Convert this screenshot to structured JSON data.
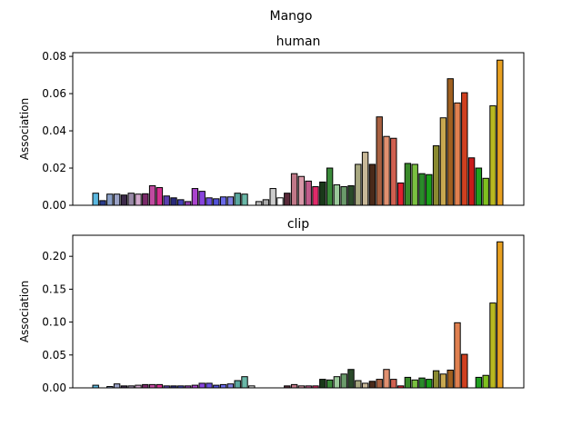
{
  "figure": {
    "title": "Mango"
  },
  "chart_data": [
    {
      "type": "bar",
      "title": "human",
      "xlabel": "",
      "ylabel": "Association",
      "ylim": [
        0,
        0.082
      ],
      "yticks": [
        0.0,
        0.02,
        0.04,
        0.06,
        0.08
      ],
      "ytick_labels": [
        "0.00",
        "0.02",
        "0.04",
        "0.06",
        "0.08"
      ],
      "grid": false,
      "values": [
        0.0065,
        0.0025,
        0.006,
        0.006,
        0.0055,
        0.0065,
        0.006,
        0.0062,
        0.0105,
        0.0095,
        0.005,
        0.004,
        0.003,
        0.002,
        0.009,
        0.0075,
        0.004,
        0.0035,
        0.0045,
        0.0045,
        0.0065,
        0.006,
        0.0,
        0.002,
        0.003,
        0.009,
        0.004,
        0.0065,
        0.017,
        0.0155,
        0.013,
        0.01,
        0.0125,
        0.02,
        0.011,
        0.01,
        0.0105,
        0.022,
        0.0285,
        0.022,
        0.0475,
        0.037,
        0.036,
        0.012,
        0.0225,
        0.022,
        0.017,
        0.0165,
        0.032,
        0.047,
        0.068,
        0.055,
        0.0605,
        0.0255,
        0.02,
        0.0145,
        0.0535,
        0.078
      ],
      "colors": [
        "#5bb8e0",
        "#2a3c8c",
        "#8aa0c8",
        "#9aa2c6",
        "#3c2a4a",
        "#9a8aa8",
        "#d2a8cc",
        "#7a2a6a",
        "#c04aa0",
        "#d43090",
        "#5a40b0",
        "#2a2a7a",
        "#4444b8",
        "#9040b0",
        "#aa44cc",
        "#8844dd",
        "#6a50e0",
        "#5252d8",
        "#6a6ae8",
        "#8080e0",
        "#5aa8a0",
        "#6ab8a8",
        "#dddddd",
        "#bbbbbb",
        "#aaaaaa",
        "#cccccc",
        "#ffffff",
        "#5a2a3a",
        "#c07888",
        "#d898a8",
        "#c05a8a",
        "#e02a6a",
        "#1a3a1a",
        "#3a8a3a",
        "#9ac89a",
        "#6a9a6a",
        "#2a4a2a",
        "#a8a880",
        "#c8b898",
        "#4a2a1a",
        "#a86040",
        "#e09070",
        "#d06050",
        "#e02030",
        "#3a8a2a",
        "#7ac040",
        "#2a8a2a",
        "#1aa01a",
        "#8a8a30",
        "#c8a850",
        "#a06020",
        "#e08050",
        "#d04020",
        "#c81a1a",
        "#20a020",
        "#80c020",
        "#b8b820",
        "#e8a020"
      ]
    },
    {
      "type": "bar",
      "title": "clip",
      "xlabel": "",
      "ylabel": "Association",
      "ylim": [
        0,
        0.232
      ],
      "yticks": [
        0.0,
        0.05,
        0.1,
        0.15,
        0.2
      ],
      "ytick_labels": [
        "0.00",
        "0.05",
        "0.10",
        "0.15",
        "0.20"
      ],
      "grid": false,
      "values": [
        0.004,
        0.0,
        0.002,
        0.006,
        0.003,
        0.003,
        0.004,
        0.005,
        0.005,
        0.005,
        0.003,
        0.003,
        0.003,
        0.003,
        0.004,
        0.007,
        0.007,
        0.004,
        0.005,
        0.006,
        0.011,
        0.017,
        0.003,
        0.0,
        0.0,
        0.0,
        0.0,
        0.003,
        0.005,
        0.003,
        0.003,
        0.003,
        0.013,
        0.012,
        0.017,
        0.021,
        0.028,
        0.011,
        0.007,
        0.01,
        0.013,
        0.028,
        0.013,
        0.003,
        0.016,
        0.012,
        0.015,
        0.013,
        0.026,
        0.021,
        0.027,
        0.099,
        0.051,
        0.0,
        0.016,
        0.019,
        0.129,
        0.222
      ],
      "colors": [
        "#5bb8e0",
        "#2a3c8c",
        "#8aa0c8",
        "#9aa2c6",
        "#3c2a4a",
        "#9a8aa8",
        "#d2a8cc",
        "#7a2a6a",
        "#c04aa0",
        "#d43090",
        "#5a40b0",
        "#2a2a7a",
        "#4444b8",
        "#9040b0",
        "#aa44cc",
        "#8844dd",
        "#6a50e0",
        "#5252d8",
        "#6a6ae8",
        "#8080e0",
        "#5aa8a0",
        "#6ab8a8",
        "#dddddd",
        "#bbbbbb",
        "#aaaaaa",
        "#cccccc",
        "#ffffff",
        "#5a2a3a",
        "#c07888",
        "#d898a8",
        "#c05a8a",
        "#e02a6a",
        "#1a3a1a",
        "#3a8a3a",
        "#9ac89a",
        "#6a9a6a",
        "#2a4a2a",
        "#a8a880",
        "#c8b898",
        "#4a2a1a",
        "#a86040",
        "#e09070",
        "#d06050",
        "#e02030",
        "#3a8a2a",
        "#7ac040",
        "#2a8a2a",
        "#1aa01a",
        "#8a8a30",
        "#c8a850",
        "#a06020",
        "#e08050",
        "#d04020",
        "#c81a1a",
        "#20a020",
        "#80c020",
        "#b8b820",
        "#e8a020"
      ]
    }
  ]
}
